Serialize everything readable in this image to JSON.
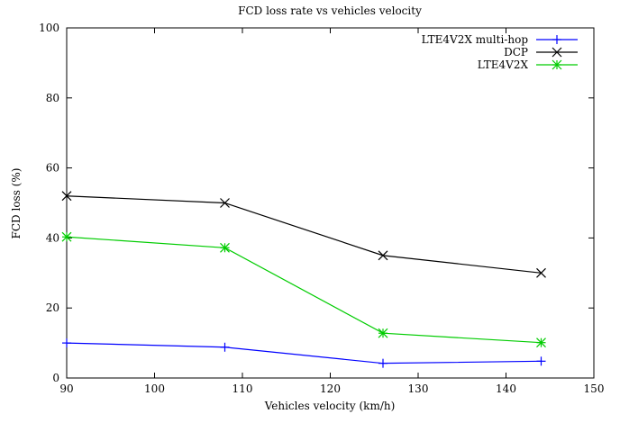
{
  "chart_data": {
    "type": "line",
    "title": "FCD loss rate vs vehicles velocity",
    "xlabel": "Vehicles velocity (km/h)",
    "ylabel": "FCD loss (%)",
    "xlim": [
      90,
      150
    ],
    "ylim": [
      0,
      100
    ],
    "xticks": [
      90,
      100,
      110,
      120,
      130,
      140,
      150
    ],
    "yticks": [
      0,
      20,
      40,
      60,
      80,
      100
    ],
    "grid": false,
    "legend_position": "top-right",
    "series": [
      {
        "name": "LTE4V2X multi-hop",
        "color": "#0000ff",
        "marker": "plus",
        "x": [
          90,
          108,
          126,
          144
        ],
        "y": [
          10,
          8.8,
          4.2,
          4.8
        ]
      },
      {
        "name": "DCP",
        "color": "#000000",
        "marker": "cross",
        "x": [
          90,
          108,
          126,
          144
        ],
        "y": [
          52,
          50,
          35,
          30
        ]
      },
      {
        "name": "LTE4V2X",
        "color": "#00cc00",
        "marker": "star",
        "x": [
          90,
          108,
          126,
          144
        ],
        "y": [
          40.3,
          37.2,
          12.8,
          10.1
        ]
      }
    ]
  }
}
